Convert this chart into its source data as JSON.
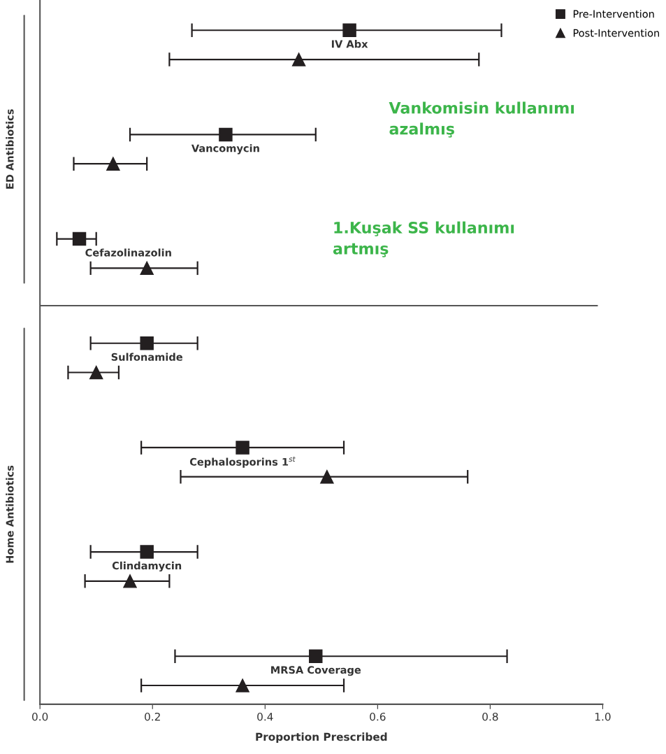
{
  "chart_data": {
    "type": "scatter",
    "orientation": "horizontal",
    "xlabel": "Proportion Prescribed",
    "categories": [
      "IV Abx",
      "Vancomycin",
      "Cefazolinazolin",
      "Sulfonamide",
      "Cephalosporins 1$^{st}$",
      "Clindamycin",
      "MRSA Coverage"
    ],
    "series": [
      {
        "name": "Pre-Intervention",
        "color": "#231f20",
        "marker": "square",
        "values": [
          0.55,
          0.33,
          0.07,
          0.19,
          0.36,
          0.19,
          0.49
        ],
        "errors": [
          [
            0.27,
            0.82
          ],
          [
            0.16,
            0.49
          ],
          [
            0.03,
            0.1
          ],
          [
            0.09,
            0.28
          ],
          [
            0.18,
            0.54
          ],
          [
            0.09,
            0.28
          ],
          [
            0.24,
            0.83
          ]
        ]
      },
      {
        "name": "Post-Intervention",
        "color": "#231f20",
        "marker": "triangle",
        "values": [
          0.46,
          0.13,
          0.19,
          0.1,
          0.51,
          0.16,
          0.36
        ],
        "errors": [
          [
            0.23,
            0.78
          ],
          [
            0.06,
            0.19
          ],
          [
            0.09,
            0.28
          ],
          [
            0.05,
            0.14
          ],
          [
            0.25,
            0.76
          ],
          [
            0.08,
            0.23
          ],
          [
            0.18,
            0.54
          ]
        ]
      }
    ],
    "xlim": [
      0,
      1
    ],
    "xticks": [
      {
        "value": 0,
        "label": "0.0"
      },
      0.2,
      0.4,
      0.6,
      0.8,
      {
        "value": 1,
        "label": "1.0"
      }
    ],
    "tick_labels": "x",
    "grid": false,
    "legend": "top right",
    "annotations": [
      "ED Antibiotics",
      "Home Antibiotics",
      "Vankomisin kullanımı\nazalmış",
      "1.Kuşak SS kullanımı\nartmış"
    ]
  }
}
